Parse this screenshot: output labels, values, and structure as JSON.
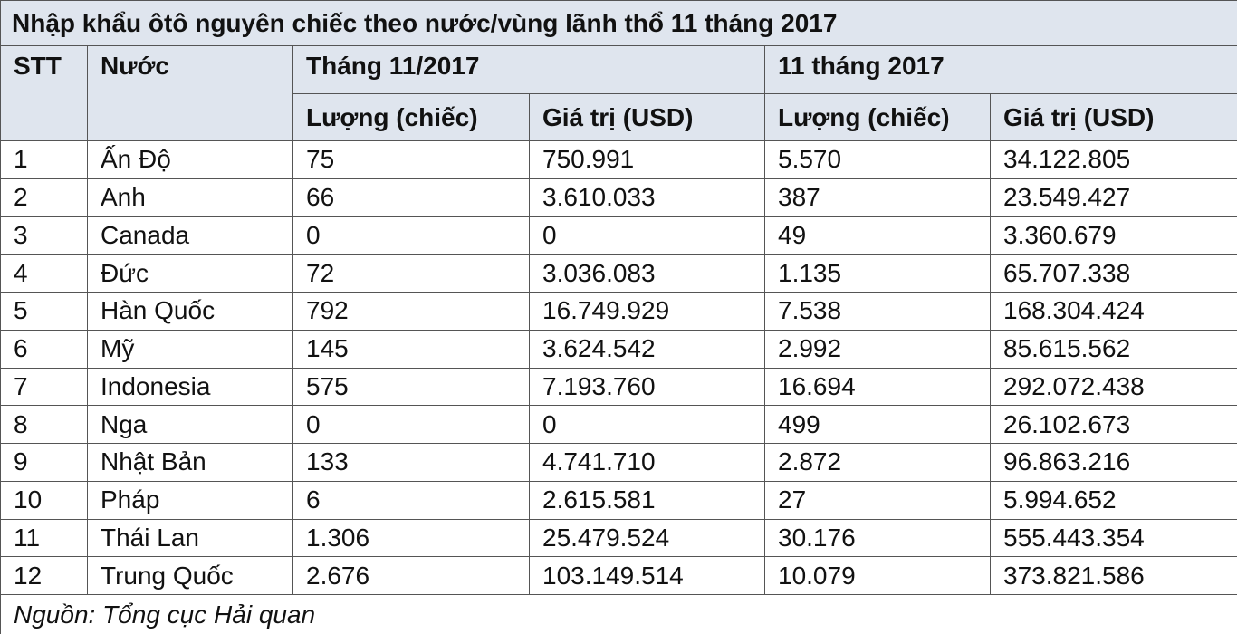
{
  "title": "Nhập khẩu ôtô nguyên chiếc theo nước/vùng lãnh thổ 11 tháng 2017",
  "header": {
    "stt": "STT",
    "country": "Nước",
    "group1": "Tháng 11/2017",
    "group2": "11 tháng 2017",
    "sub": [
      "Lượng (chiếc)",
      "Giá trị (USD)",
      "Lượng (chiếc)",
      "Giá trị (USD)"
    ]
  },
  "table": {
    "rows": [
      [
        "1",
        "Ấn Độ",
        "75",
        "750.991",
        "5.570",
        "34.122.805"
      ],
      [
        "2",
        "Anh",
        "66",
        "3.610.033",
        "387",
        "23.549.427"
      ],
      [
        "3",
        "Canada",
        "0",
        "0",
        "49",
        "3.360.679"
      ],
      [
        "4",
        "Đức",
        "72",
        "3.036.083",
        "1.135",
        "65.707.338"
      ],
      [
        "5",
        "Hàn Quốc",
        "792",
        "16.749.929",
        "7.538",
        "168.304.424"
      ],
      [
        "6",
        "Mỹ",
        "145",
        "3.624.542",
        "2.992",
        "85.615.562"
      ],
      [
        "7",
        "Indonesia",
        "575",
        "7.193.760",
        "16.694",
        "292.072.438"
      ],
      [
        "8",
        "Nga",
        "0",
        "0",
        "499",
        "26.102.673"
      ],
      [
        "9",
        "Nhật Bản",
        "133",
        "4.741.710",
        "2.872",
        "96.863.216"
      ],
      [
        "10",
        "Pháp",
        "6",
        "2.615.581",
        "27",
        "5.994.652"
      ],
      [
        "11",
        "Thái Lan",
        "1.306",
        "25.479.524",
        "30.176",
        "555.443.354"
      ],
      [
        "12",
        "Trung Quốc",
        "2.676",
        "103.149.514",
        "10.079",
        "373.821.586"
      ]
    ]
  },
  "source": "Nguồn: Tổng cục Hải quan"
}
